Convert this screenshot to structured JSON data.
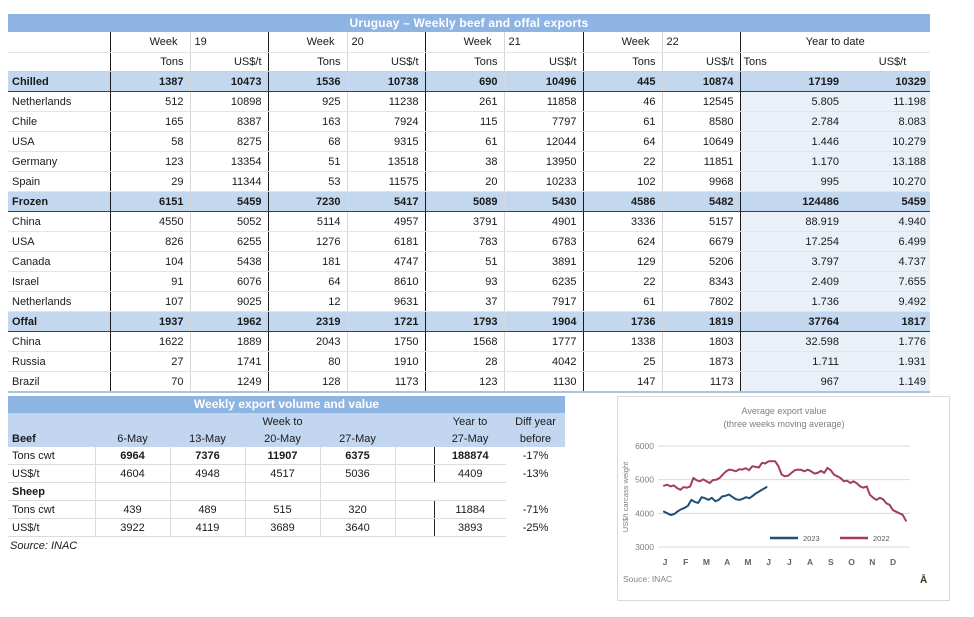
{
  "top_table": {
    "title": "Uruguay – Weekly beef and offal exports",
    "week_label": "Week",
    "weeks": [
      "19",
      "20",
      "21",
      "22"
    ],
    "ytd_label": "Year to date",
    "col_tons": "Tons",
    "col_usd": "US$/t",
    "rows": [
      {
        "label": "Chilled",
        "section": true,
        "cells": [
          "1387",
          "10473",
          "1536",
          "10738",
          "690",
          "10496",
          "445",
          "10874",
          "17199",
          "10329"
        ]
      },
      {
        "label": "Netherlands",
        "section": false,
        "cells": [
          "512",
          "10898",
          "925",
          "11238",
          "261",
          "11858",
          "46",
          "12545",
          "5.805",
          "11.198"
        ]
      },
      {
        "label": "Chile",
        "section": false,
        "cells": [
          "165",
          "8387",
          "163",
          "7924",
          "115",
          "7797",
          "61",
          "8580",
          "2.784",
          "8.083"
        ]
      },
      {
        "label": "USA",
        "section": false,
        "cells": [
          "58",
          "8275",
          "68",
          "9315",
          "61",
          "12044",
          "64",
          "10649",
          "1.446",
          "10.279"
        ]
      },
      {
        "label": "Germany",
        "section": false,
        "cells": [
          "123",
          "13354",
          "51",
          "13518",
          "38",
          "13950",
          "22",
          "11851",
          "1.170",
          "13.188"
        ]
      },
      {
        "label": "Spain",
        "section": false,
        "cells": [
          "29",
          "11344",
          "53",
          "11575",
          "20",
          "10233",
          "102",
          "9968",
          "995",
          "10.270"
        ]
      },
      {
        "label": "Frozen",
        "section": true,
        "cells": [
          "6151",
          "5459",
          "7230",
          "5417",
          "5089",
          "5430",
          "4586",
          "5482",
          "124486",
          "5459"
        ]
      },
      {
        "label": "China",
        "section": false,
        "cells": [
          "4550",
          "5052",
          "5114",
          "4957",
          "3791",
          "4901",
          "3336",
          "5157",
          "88.919",
          "4.940"
        ]
      },
      {
        "label": "USA",
        "section": false,
        "cells": [
          "826",
          "6255",
          "1276",
          "6181",
          "783",
          "6783",
          "624",
          "6679",
          "17.254",
          "6.499"
        ]
      },
      {
        "label": "Canada",
        "section": false,
        "cells": [
          "104",
          "5438",
          "181",
          "4747",
          "51",
          "3891",
          "129",
          "5206",
          "3.797",
          "4.737"
        ]
      },
      {
        "label": "Israel",
        "section": false,
        "cells": [
          "91",
          "6076",
          "64",
          "8610",
          "93",
          "6235",
          "22",
          "8343",
          "2.409",
          "7.655"
        ]
      },
      {
        "label": "Netherlands",
        "section": false,
        "cells": [
          "107",
          "9025",
          "12",
          "9631",
          "37",
          "7917",
          "61",
          "7802",
          "1.736",
          "9.492"
        ]
      },
      {
        "label": "Offal",
        "section": true,
        "cells": [
          "1937",
          "1962",
          "2319",
          "1721",
          "1793",
          "1904",
          "1736",
          "1819",
          "37764",
          "1817"
        ]
      },
      {
        "label": "China",
        "section": false,
        "cells": [
          "1622",
          "1889",
          "2043",
          "1750",
          "1568",
          "1777",
          "1338",
          "1803",
          "32.598",
          "1.776"
        ]
      },
      {
        "label": "Russia",
        "section": false,
        "cells": [
          "27",
          "1741",
          "80",
          "1910",
          "28",
          "4042",
          "25",
          "1873",
          "1.711",
          "1.931"
        ]
      },
      {
        "label": "Brazil",
        "section": false,
        "cells": [
          "70",
          "1249",
          "128",
          "1173",
          "123",
          "1130",
          "147",
          "1173",
          "967",
          "1.149"
        ]
      }
    ]
  },
  "bottom_table": {
    "title": "Weekly export volume and value",
    "week_to_label": "Week to",
    "year_to_label": "Year to",
    "diff_label_line1": "Diff year",
    "diff_label_line2": "before",
    "header_label": "Beef",
    "dates": [
      "6-May",
      "13-May",
      "20-May",
      "27-May"
    ],
    "ytd_date": "27-May",
    "rows": [
      {
        "label": "Tons cwt",
        "section": false,
        "bold": true,
        "values": [
          "6964",
          "7376",
          "11907",
          "6375"
        ],
        "ytd": "188874",
        "diff": "-17%"
      },
      {
        "label": "US$/t",
        "section": false,
        "bold": false,
        "values": [
          "4604",
          "4948",
          "4517",
          "5036"
        ],
        "ytd": "4409",
        "diff": "-13%"
      },
      {
        "label": "Sheep",
        "section": true,
        "bold": false,
        "values": [
          "",
          "",
          "",
          ""
        ],
        "ytd": "",
        "diff": ""
      },
      {
        "label": "Tons cwt",
        "section": false,
        "bold": false,
        "values": [
          "439",
          "489",
          "515",
          "320"
        ],
        "ytd": "11884",
        "diff": "-71%"
      },
      {
        "label": "US$/t",
        "section": false,
        "bold": false,
        "values": [
          "3922",
          "4119",
          "3689",
          "3640"
        ],
        "ytd": "3893",
        "diff": "-25%"
      }
    ],
    "source": "Source: INAC"
  },
  "chart_data": {
    "type": "line",
    "title": "Average export value",
    "subtitle": "(three weeks moving average)",
    "ylabel": "US$/t carcass weight",
    "ylim": [
      3000,
      6000
    ],
    "yticks": [
      6000,
      5000,
      4000,
      3000
    ],
    "xticks": [
      "J",
      "F",
      "M",
      "A",
      "M",
      "J",
      "J",
      "A",
      "S",
      "O",
      "N",
      "D"
    ],
    "grid": true,
    "legend_position": "inside-bottom",
    "source": "Souce: INAC",
    "logo_glyph": "Ā",
    "series": [
      {
        "name": "2023",
        "color": "#1F4E79",
        "months_span": 5.0,
        "values": [
          4050,
          4000,
          3950,
          3980,
          4060,
          4120,
          4160,
          4220,
          4400,
          4340,
          4310,
          4480,
          4450,
          4400,
          4460,
          4360,
          4400,
          4500,
          4520,
          4560,
          4490,
          4420,
          4400,
          4430,
          4480,
          4450,
          4520,
          4600,
          4660,
          4720,
          4780
        ]
      },
      {
        "name": "2022",
        "color": "#A23B68",
        "months_span": 11.8,
        "values": [
          4820,
          4850,
          4800,
          4830,
          4750,
          4700,
          4780,
          4760,
          4800,
          5050,
          4980,
          4950,
          5010,
          4950,
          4900,
          4990,
          5000,
          5050,
          5150,
          5250,
          5300,
          5280,
          5250,
          5310,
          5300,
          5340,
          5280,
          5400,
          5380,
          5360,
          5500,
          5480,
          5550,
          5550,
          5550,
          5400,
          5150,
          5100,
          5120,
          5200,
          5280,
          5300,
          5290,
          5250,
          5300,
          5250,
          5180,
          5200,
          5260,
          5200,
          5350,
          5280,
          5150,
          5100,
          5050,
          4950,
          4970,
          4900,
          4950,
          4890,
          4800,
          4760,
          4800,
          4550,
          4460,
          4400,
          4460,
          4420,
          4300,
          4250,
          4100,
          4050,
          4000,
          3960,
          3780
        ]
      }
    ]
  }
}
